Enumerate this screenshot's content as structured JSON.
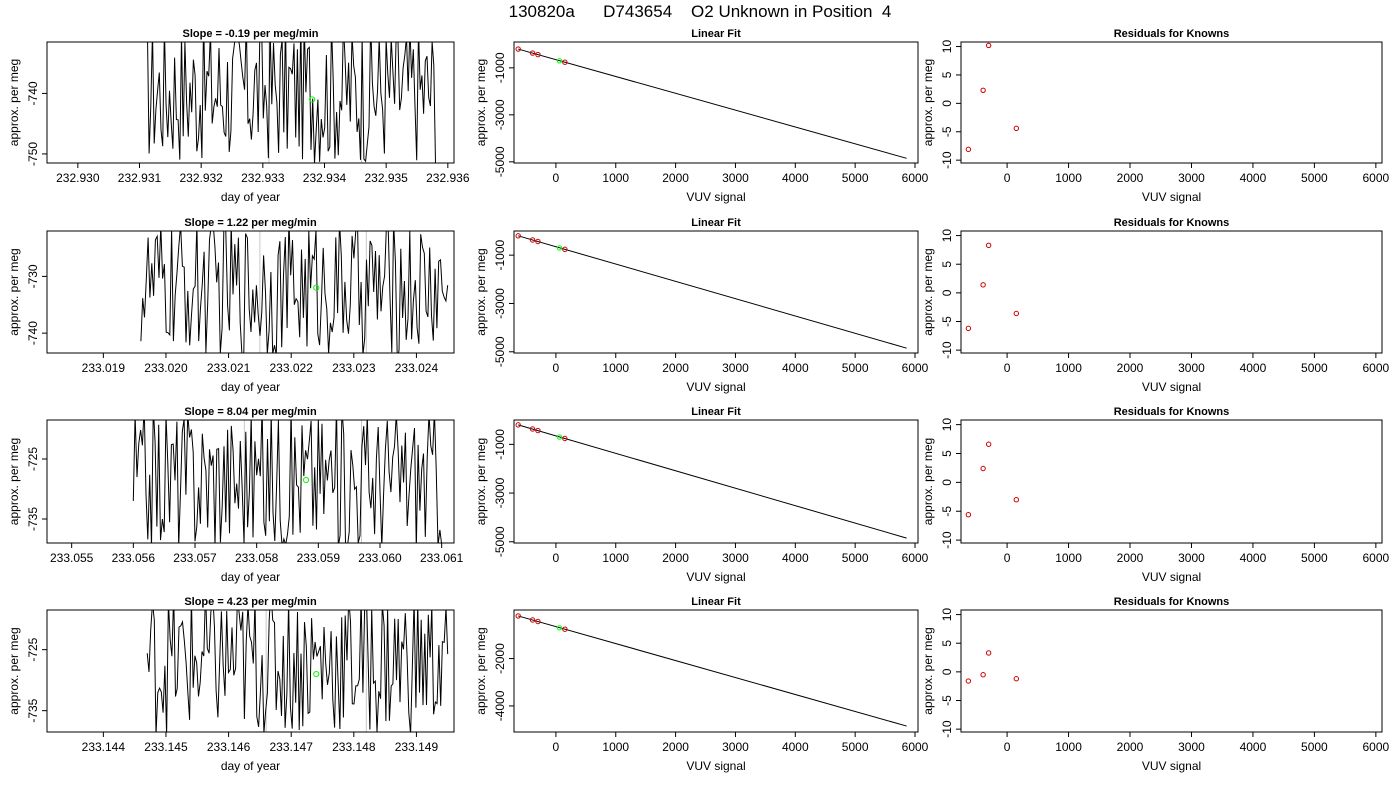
{
  "title": "130820a      D743654    O2 Unknown in Position  4",
  "colors": {
    "trace": "#000000",
    "refline": "#c8c8c8",
    "unknown": "#00ff00",
    "known": "#cc0000",
    "fitline": "#000000"
  },
  "chart_data": [
    {
      "type": "line",
      "title": "Slope =  -0.19  per meg/min",
      "xlabel": "day of year",
      "ylabel": "approx. per meg",
      "xlim": [
        232.9295,
        232.9361
      ],
      "ylim": [
        -751.5,
        -731.5
      ],
      "xticks": [
        "232.930",
        "232.931",
        "232.932",
        "232.933",
        "232.934",
        "232.935",
        "232.936"
      ],
      "xtick_values": [
        232.93,
        232.931,
        232.932,
        232.933,
        232.934,
        232.935,
        232.936
      ],
      "yticks": [
        "-750",
        "-740"
      ],
      "ytick_values": [
        -750,
        -740
      ],
      "ref_lines_x": [
        232.9331,
        232.9346
      ],
      "trace_x_range": [
        232.9311,
        232.9358
      ],
      "trace_center": -739.5,
      "trace_amp": 9,
      "unknown_point": {
        "x": 232.9338,
        "y": -741.0
      }
    },
    {
      "type": "line",
      "title": "Slope =  1.22  per meg/min",
      "xlabel": "day of year",
      "ylabel": "approx. per meg",
      "xlim": [
        233.0181,
        233.0246
      ],
      "ylim": [
        -743.5,
        -722
      ],
      "xticks": [
        "233.019",
        "233.020",
        "233.021",
        "233.022",
        "233.023",
        "233.024"
      ],
      "xtick_values": [
        233.019,
        233.02,
        233.021,
        233.022,
        233.023,
        233.024
      ],
      "yticks": [
        "-740",
        "-730"
      ],
      "ytick_values": [
        -740,
        -730
      ],
      "ref_lines_x": [
        233.0215,
        233.0232
      ],
      "trace_x_range": [
        233.0196,
        233.0245
      ],
      "trace_center": -732,
      "trace_amp": 9,
      "unknown_point": {
        "x": 233.0224,
        "y": -732.0
      }
    },
    {
      "type": "line",
      "title": "Slope =  8.04  per meg/min",
      "xlabel": "day of year",
      "ylabel": "approx. per meg",
      "xlim": [
        233.0546,
        233.0612
      ],
      "ylim": [
        -739,
        -718.5
      ],
      "xticks": [
        "233.055",
        "233.056",
        "233.057",
        "233.058",
        "233.059",
        "233.060",
        "233.061"
      ],
      "xtick_values": [
        233.055,
        233.056,
        233.057,
        233.058,
        233.059,
        233.06,
        233.061
      ],
      "yticks": [
        "-735",
        "-725"
      ],
      "ytick_values": [
        -735,
        -725
      ],
      "ref_lines_x": [
        233.0578,
        233.0597
      ],
      "trace_x_range": [
        233.056,
        233.061
      ],
      "trace_center": -728,
      "trace_amp": 9,
      "unknown_point": {
        "x": 233.0588,
        "y": -728.5
      }
    },
    {
      "type": "line",
      "title": "Slope =  4.23  per meg/min",
      "xlabel": "day of year",
      "ylabel": "approx. per meg",
      "xlim": [
        233.1431,
        233.1496
      ],
      "ylim": [
        -738.5,
        -718.5
      ],
      "xticks": [
        "233.144",
        "233.145",
        "233.146",
        "233.147",
        "233.148",
        "233.149"
      ],
      "xtick_values": [
        233.144,
        233.145,
        233.146,
        233.147,
        233.148,
        233.149
      ],
      "yticks": [
        "-735",
        "-725"
      ],
      "ytick_values": [
        -735,
        -725
      ],
      "ref_lines_x": [
        233.1466,
        233.1482
      ],
      "trace_x_range": [
        233.1447,
        233.1495
      ],
      "trace_center": -727,
      "trace_amp": 9,
      "unknown_point": {
        "x": 233.1474,
        "y": -729.0
      }
    },
    {
      "type": "scatter",
      "title": "Linear Fit",
      "xlabel": "VUV signal",
      "ylabel": "approx. per meg",
      "xlim": [
        -700,
        6050
      ],
      "ylim": [
        -5050,
        100
      ],
      "xticks": [
        "0",
        "1000",
        "2000",
        "3000",
        "4000",
        "5000",
        "6000"
      ],
      "xtick_values": [
        0,
        1000,
        2000,
        3000,
        4000,
        5000,
        6000
      ],
      "yticks": [
        "-5000",
        "-3000",
        "-1000"
      ],
      "ytick_values": [
        -5000,
        -3000,
        -1000
      ],
      "fit_line": [
        [
          -630,
          -200
        ],
        [
          5860,
          -4850
        ]
      ],
      "known_points": [
        {
          "x": -630,
          "y": -200
        },
        {
          "x": -390,
          "y": -370
        },
        {
          "x": -300,
          "y": -435
        },
        {
          "x": 150,
          "y": -760
        }
      ],
      "unknown_points": [
        {
          "x": 60,
          "y": -700
        }
      ]
    },
    {
      "type": "scatter",
      "title": "Linear Fit",
      "xlabel": "VUV signal",
      "ylabel": "approx. per meg",
      "xlim": [
        -700,
        6050
      ],
      "ylim": [
        -5050,
        0
      ],
      "xticks": [
        "0",
        "1000",
        "2000",
        "3000",
        "4000",
        "5000",
        "6000"
      ],
      "xtick_values": [
        0,
        1000,
        2000,
        3000,
        4000,
        5000,
        6000
      ],
      "yticks": [
        "-5000",
        "-3000",
        "-1000"
      ],
      "ytick_values": [
        -5000,
        -3000,
        -1000
      ],
      "fit_line": [
        [
          -630,
          -200
        ],
        [
          5860,
          -4850
        ]
      ],
      "known_points": [
        {
          "x": -630,
          "y": -200
        },
        {
          "x": -390,
          "y": -370
        },
        {
          "x": -300,
          "y": -435
        },
        {
          "x": 150,
          "y": -760
        }
      ],
      "unknown_points": [
        {
          "x": 60,
          "y": -700
        }
      ]
    },
    {
      "type": "scatter",
      "title": "Linear Fit",
      "xlabel": "VUV signal",
      "ylabel": "approx. per meg",
      "xlim": [
        -700,
        6050
      ],
      "ylim": [
        -5050,
        0
      ],
      "xticks": [
        "0",
        "1000",
        "2000",
        "3000",
        "4000",
        "5000",
        "6000"
      ],
      "xtick_values": [
        0,
        1000,
        2000,
        3000,
        4000,
        5000,
        6000
      ],
      "yticks": [
        "-5000",
        "-3000",
        "-1000"
      ],
      "ytick_values": [
        -5000,
        -3000,
        -1000
      ],
      "fit_line": [
        [
          -630,
          -200
        ],
        [
          5860,
          -4850
        ]
      ],
      "known_points": [
        {
          "x": -630,
          "y": -200
        },
        {
          "x": -390,
          "y": -370
        },
        {
          "x": -300,
          "y": -435
        },
        {
          "x": 150,
          "y": -760
        }
      ],
      "unknown_points": [
        {
          "x": 60,
          "y": -700
        }
      ]
    },
    {
      "type": "scatter",
      "title": "Linear Fit",
      "xlabel": "VUV signal",
      "ylabel": "approx. per meg",
      "xlim": [
        -700,
        6050
      ],
      "ylim": [
        -5100,
        50
      ],
      "xticks": [
        "0",
        "1000",
        "2000",
        "3000",
        "4000",
        "5000",
        "6000"
      ],
      "xtick_values": [
        0,
        1000,
        2000,
        3000,
        4000,
        5000,
        6000
      ],
      "yticks": [
        "-4000",
        "-2000"
      ],
      "ytick_values": [
        -4000,
        -2000
      ],
      "fit_line": [
        [
          -630,
          -200
        ],
        [
          5860,
          -4850
        ]
      ],
      "known_points": [
        {
          "x": -630,
          "y": -200
        },
        {
          "x": -390,
          "y": -370
        },
        {
          "x": -300,
          "y": -435
        },
        {
          "x": 150,
          "y": -760
        }
      ],
      "unknown_points": [
        {
          "x": 60,
          "y": -700
        }
      ]
    },
    {
      "type": "scatter",
      "title": "Residuals for Knowns",
      "xlabel": "VUV signal",
      "ylabel": "approx. per meg",
      "xlim": [
        -750,
        6100
      ],
      "ylim": [
        -10.5,
        10.8
      ],
      "xticks": [
        "0",
        "1000",
        "2000",
        "3000",
        "4000",
        "5000",
        "6000"
      ],
      "xtick_values": [
        0,
        1000,
        2000,
        3000,
        4000,
        5000,
        6000
      ],
      "yticks": [
        "-10",
        "-5",
        "0",
        "5",
        "10"
      ],
      "ytick_values": [
        -10,
        -5,
        0,
        5,
        10
      ],
      "known_points": [
        {
          "x": -630,
          "y": -8.1
        },
        {
          "x": -390,
          "y": 2.3
        },
        {
          "x": -300,
          "y": 10.2
        },
        {
          "x": 150,
          "y": -4.4
        }
      ]
    },
    {
      "type": "scatter",
      "title": "Residuals for Knowns",
      "xlabel": "VUV signal",
      "ylabel": "approx. per meg",
      "xlim": [
        -750,
        6100
      ],
      "ylim": [
        -10.5,
        10.8
      ],
      "xticks": [
        "0",
        "1000",
        "2000",
        "3000",
        "4000",
        "5000",
        "6000"
      ],
      "xtick_values": [
        0,
        1000,
        2000,
        3000,
        4000,
        5000,
        6000
      ],
      "yticks": [
        "-10",
        "-5",
        "0",
        "5",
        "10"
      ],
      "ytick_values": [
        -10,
        -5,
        0,
        5,
        10
      ],
      "known_points": [
        {
          "x": -630,
          "y": -6.2
        },
        {
          "x": -390,
          "y": 1.4
        },
        {
          "x": -300,
          "y": 8.3
        },
        {
          "x": 150,
          "y": -3.6
        }
      ]
    },
    {
      "type": "scatter",
      "title": "Residuals for Knowns",
      "xlabel": "VUV signal",
      "ylabel": "approx. per meg",
      "xlim": [
        -750,
        6100
      ],
      "ylim": [
        -10.5,
        10.8
      ],
      "xticks": [
        "0",
        "1000",
        "2000",
        "3000",
        "4000",
        "5000",
        "6000"
      ],
      "xtick_values": [
        0,
        1000,
        2000,
        3000,
        4000,
        5000,
        6000
      ],
      "yticks": [
        "-10",
        "-5",
        "0",
        "5",
        "10"
      ],
      "ytick_values": [
        -10,
        -5,
        0,
        5,
        10
      ],
      "known_points": [
        {
          "x": -630,
          "y": -5.6
        },
        {
          "x": -390,
          "y": 2.4
        },
        {
          "x": -300,
          "y": 6.6
        },
        {
          "x": 150,
          "y": -3.0
        }
      ]
    },
    {
      "type": "scatter",
      "title": "Residuals for Knowns",
      "xlabel": "VUV signal",
      "ylabel": "approx. per meg",
      "xlim": [
        -750,
        6100
      ],
      "ylim": [
        -10.5,
        10.8
      ],
      "xticks": [
        "0",
        "1000",
        "2000",
        "3000",
        "4000",
        "5000",
        "6000"
      ],
      "xtick_values": [
        0,
        1000,
        2000,
        3000,
        4000,
        5000,
        6000
      ],
      "yticks": [
        "-10",
        "-5",
        "0",
        "5",
        "10"
      ],
      "ytick_values": [
        -10,
        -5,
        0,
        5,
        10
      ],
      "known_points": [
        {
          "x": -630,
          "y": -1.6
        },
        {
          "x": -390,
          "y": -0.5
        },
        {
          "x": -300,
          "y": 3.3
        },
        {
          "x": 150,
          "y": -1.2
        }
      ]
    }
  ]
}
